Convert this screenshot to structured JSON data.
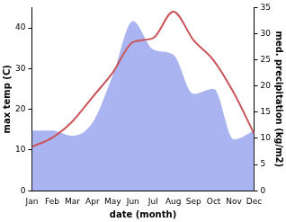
{
  "chart_data": {
    "type": "line",
    "x_label": "date (month)",
    "y_label": "max temp (C)",
    "y2_label": "med. precipitation (kg/m2)",
    "categories": [
      "Jan",
      "Feb",
      "Mar",
      "Apr",
      "May",
      "Jun",
      "Jul",
      "Aug",
      "Sep",
      "Oct",
      "Nov",
      "Dec"
    ],
    "series": [
      {
        "name": "med. precipitation (kg/m2)",
        "type": "area",
        "axis": "y2",
        "color": "#aab4f0",
        "values": [
          11.5,
          11.5,
          10.5,
          13,
          22,
          32.4,
          27,
          26,
          18.5,
          19.5,
          9.8,
          11.5
        ]
      },
      {
        "name": "max temp (C)",
        "type": "line",
        "color": "#c9555a",
        "values": [
          10.8,
          13,
          17,
          23,
          29,
          36.5,
          37.5,
          44,
          37,
          32,
          24,
          14
        ]
      }
    ],
    "ylim": [
      0,
      45
    ],
    "yticks": [
      0,
      10,
      20,
      30,
      40
    ],
    "y2lim": [
      0,
      35
    ],
    "y2ticks": [
      0,
      5,
      10,
      15,
      20,
      25,
      30,
      35
    ],
    "grid": false
  }
}
